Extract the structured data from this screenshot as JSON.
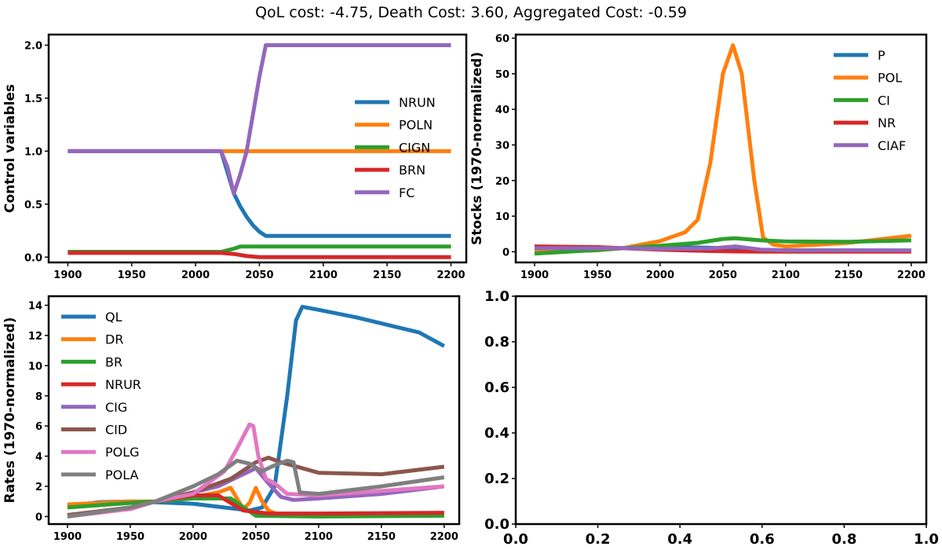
{
  "figure": {
    "suptitle": "QoL cost: -4.75, Death Cost: 3.60, Aggregated Cost: -0.59"
  },
  "colors": {
    "blue": "#1f77b4",
    "orange": "#ff7f0e",
    "green": "#2ca02c",
    "red": "#d62728",
    "purple": "#9467bd",
    "brown": "#8c564b",
    "pink": "#e377c2",
    "gray": "#7f7f7f"
  },
  "chart_data": [
    {
      "id": "control",
      "type": "line",
      "title": "",
      "xlabel": "",
      "ylabel": "Control variables",
      "xlim": [
        1885,
        2212
      ],
      "ylim": [
        -0.05,
        2.1
      ],
      "xticks": [
        1900,
        1950,
        2000,
        2050,
        2100,
        2150,
        2200
      ],
      "yticks": [
        0.0,
        0.5,
        1.0,
        1.5,
        2.0
      ],
      "ytick_labels": [
        "0.0",
        "0.5",
        "1.0",
        "1.5",
        "2.0"
      ],
      "legend": "center-right",
      "series": [
        {
          "name": "NRUN",
          "color": "blue",
          "x": [
            1900,
            2020,
            2025,
            2030,
            2035,
            2040,
            2045,
            2050,
            2055,
            2200
          ],
          "y": [
            1.0,
            1.0,
            0.8,
            0.6,
            0.48,
            0.38,
            0.3,
            0.24,
            0.2,
            0.2
          ]
        },
        {
          "name": "POLN",
          "color": "orange",
          "x": [
            1900,
            2200
          ],
          "y": [
            1.0,
            1.0
          ]
        },
        {
          "name": "CIGN",
          "color": "green",
          "x": [
            1900,
            2020,
            2030,
            2035,
            2200
          ],
          "y": [
            0.05,
            0.05,
            0.08,
            0.1,
            0.1
          ]
        },
        {
          "name": "BRN",
          "color": "red",
          "x": [
            1900,
            2020,
            2030,
            2040,
            2050,
            2200
          ],
          "y": [
            0.04,
            0.04,
            0.03,
            0.01,
            0.0,
            0.0
          ]
        },
        {
          "name": "FC",
          "color": "purple",
          "x": [
            1900,
            2020,
            2025,
            2030,
            2035,
            2040,
            2045,
            2050,
            2055,
            2200
          ],
          "y": [
            1.0,
            1.0,
            0.85,
            0.6,
            0.78,
            1.0,
            1.35,
            1.7,
            2.0,
            2.0
          ]
        }
      ]
    },
    {
      "id": "stocks",
      "type": "line",
      "title": "",
      "xlabel": "",
      "ylabel": "Stocks (1970-normalized)",
      "xlim": [
        1885,
        2212
      ],
      "ylim": [
        -3,
        61
      ],
      "xticks": [
        1900,
        1950,
        2000,
        2050,
        2100,
        2150,
        2200
      ],
      "yticks": [
        0,
        10,
        20,
        30,
        40,
        50,
        60
      ],
      "ytick_labels": [
        "0",
        "10",
        "20",
        "30",
        "40",
        "50",
        "60"
      ],
      "legend": "top-right",
      "series": [
        {
          "name": "P",
          "color": "blue",
          "x": [
            1900,
            1950,
            1970,
            2000,
            2030,
            2050,
            2070,
            2100,
            2200
          ],
          "y": [
            0.3,
            0.7,
            1.0,
            1.3,
            1.2,
            1.0,
            0.6,
            0.4,
            0.3
          ]
        },
        {
          "name": "POL",
          "color": "orange",
          "x": [
            1900,
            1950,
            1970,
            2000,
            2020,
            2030,
            2040,
            2050,
            2058,
            2065,
            2075,
            2082,
            2090,
            2100,
            2150,
            2200
          ],
          "y": [
            0.0,
            0.4,
            1.0,
            3.0,
            5.5,
            9.0,
            25.0,
            50.0,
            58.0,
            50.0,
            20.0,
            4.0,
            2.0,
            1.5,
            2.5,
            4.5
          ]
        },
        {
          "name": "CI",
          "color": "green",
          "x": [
            1900,
            1950,
            1970,
            2000,
            2030,
            2050,
            2060,
            2080,
            2100,
            2150,
            2200
          ],
          "y": [
            -0.5,
            0.5,
            1.0,
            1.7,
            2.5,
            3.6,
            3.8,
            3.2,
            2.9,
            2.8,
            3.2
          ]
        },
        {
          "name": "NR",
          "color": "red",
          "x": [
            1900,
            1950,
            1970,
            2000,
            2040,
            2060,
            2080,
            2200
          ],
          "y": [
            1.5,
            1.3,
            1.0,
            0.6,
            0.2,
            0.1,
            0.05,
            0.05
          ]
        },
        {
          "name": "CIAF",
          "color": "purple",
          "x": [
            1900,
            1950,
            1970,
            2000,
            2040,
            2060,
            2080,
            2100,
            2200
          ],
          "y": [
            1.0,
            1.0,
            1.0,
            0.8,
            0.9,
            1.5,
            0.6,
            0.4,
            0.4
          ]
        }
      ]
    },
    {
      "id": "rates",
      "type": "line",
      "title": "",
      "xlabel": "",
      "ylabel": "Rates (1970-normalized)",
      "xlim": [
        1885,
        2212
      ],
      "ylim": [
        -0.5,
        14.6
      ],
      "xticks": [
        1900,
        1950,
        2000,
        2050,
        2100,
        2150,
        2200
      ],
      "yticks": [
        0,
        2,
        4,
        6,
        8,
        10,
        12,
        14
      ],
      "ytick_labels": [
        "0",
        "2",
        "4",
        "6",
        "8",
        "10",
        "12",
        "14"
      ],
      "legend": "upper-left",
      "series": [
        {
          "name": "QL",
          "color": "blue",
          "x": [
            1900,
            1925,
            1950,
            1970,
            2000,
            2025,
            2045,
            2055,
            2065,
            2075,
            2082,
            2087,
            2100,
            2130,
            2160,
            2180,
            2200
          ],
          "y": [
            0.7,
            0.95,
            1.0,
            0.95,
            0.85,
            0.6,
            0.4,
            0.6,
            2.0,
            8.0,
            13.0,
            13.9,
            13.7,
            13.2,
            12.6,
            12.2,
            11.3
          ]
        },
        {
          "name": "DR",
          "color": "orange",
          "x": [
            1900,
            1950,
            1970,
            2000,
            2020,
            2030,
            2040,
            2045,
            2050,
            2055,
            2060,
            2070,
            2100,
            2200
          ],
          "y": [
            0.8,
            1.0,
            1.0,
            1.3,
            1.6,
            1.9,
            0.5,
            0.9,
            1.9,
            1.0,
            0.4,
            0.05,
            0.05,
            0.1
          ]
        },
        {
          "name": "BR",
          "color": "green",
          "x": [
            1900,
            1950,
            1970,
            2000,
            2030,
            2050,
            2100,
            2200
          ],
          "y": [
            0.6,
            0.9,
            1.0,
            1.2,
            1.2,
            0.05,
            0.0,
            0.05
          ]
        },
        {
          "name": "NRUR",
          "color": "red",
          "x": [
            1900,
            1950,
            1970,
            2000,
            2020,
            2040,
            2060,
            2100,
            2200
          ],
          "y": [
            0.1,
            0.5,
            1.0,
            1.4,
            1.4,
            0.4,
            0.2,
            0.2,
            0.25
          ]
        },
        {
          "name": "CIG",
          "color": "purple",
          "x": [
            1900,
            1950,
            1970,
            2000,
            2020,
            2030,
            2040,
            2050,
            2060,
            2070,
            2080,
            2100,
            2150,
            2200
          ],
          "y": [
            0.0,
            0.6,
            1.0,
            1.6,
            2.0,
            2.4,
            2.8,
            3.2,
            2.2,
            1.3,
            1.1,
            1.2,
            1.5,
            2.0
          ]
        },
        {
          "name": "CID",
          "color": "brown",
          "x": [
            1900,
            1950,
            1970,
            2000,
            2030,
            2050,
            2060,
            2070,
            2100,
            2150,
            2200
          ],
          "y": [
            0.1,
            0.6,
            1.0,
            1.6,
            2.5,
            3.6,
            3.9,
            3.6,
            2.9,
            2.8,
            3.3
          ]
        },
        {
          "name": "POLG",
          "color": "pink",
          "x": [
            1900,
            1950,
            1970,
            2000,
            2025,
            2035,
            2045,
            2048,
            2052,
            2058,
            2065,
            2075,
            2100,
            2200
          ],
          "y": [
            0.0,
            0.5,
            1.0,
            1.5,
            3.0,
            4.5,
            6.1,
            6.0,
            4.0,
            2.5,
            2.2,
            1.5,
            1.4,
            2.0
          ]
        },
        {
          "name": "POLA",
          "color": "gray",
          "x": [
            1900,
            1950,
            1970,
            2000,
            2020,
            2035,
            2045,
            2055,
            2065,
            2075,
            2080,
            2085,
            2100,
            2150,
            2200
          ],
          "y": [
            0.0,
            0.6,
            1.0,
            2.0,
            2.8,
            3.7,
            3.5,
            3.0,
            3.4,
            3.7,
            3.6,
            1.6,
            1.5,
            2.0,
            2.6
          ]
        }
      ]
    },
    {
      "id": "empty",
      "type": "line",
      "title": "",
      "xlabel": "",
      "ylabel": "",
      "xlim": [
        0,
        1
      ],
      "ylim": [
        0,
        1
      ],
      "xticks": [
        0.0,
        0.2,
        0.4,
        0.6,
        0.8,
        1.0
      ],
      "yticks": [
        0.0,
        0.2,
        0.4,
        0.6,
        0.8,
        1.0
      ],
      "xtick_labels": [
        "0.0",
        "0.2",
        "0.4",
        "0.6",
        "0.8",
        "1.0"
      ],
      "ytick_labels": [
        "0.0",
        "0.2",
        "0.4",
        "0.6",
        "0.8",
        "1.0"
      ],
      "legend": "none",
      "series": []
    }
  ]
}
